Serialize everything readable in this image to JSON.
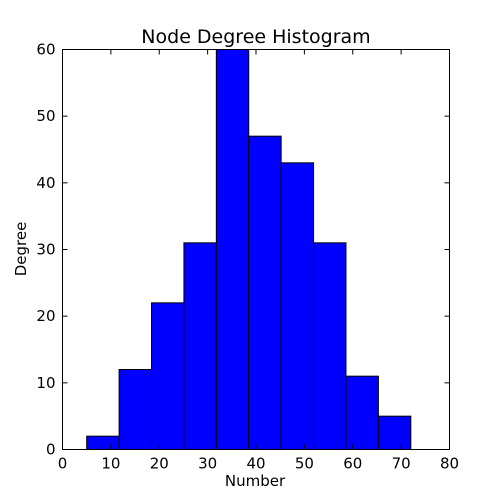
{
  "chart_data": {
    "type": "bar",
    "title": "Node Degree Histogram",
    "xlabel": "Number",
    "ylabel": "Degree",
    "xlim": [
      0,
      80
    ],
    "ylim": [
      0,
      60
    ],
    "xticks": [
      0,
      10,
      20,
      30,
      40,
      50,
      60,
      70,
      80
    ],
    "yticks": [
      0,
      10,
      20,
      30,
      40,
      50,
      60
    ],
    "bin_edges": [
      5.0,
      11.7,
      18.4,
      25.1,
      31.8,
      38.5,
      45.2,
      51.9,
      58.6,
      65.3,
      72.0
    ],
    "values": [
      2,
      12,
      22,
      31,
      60,
      47,
      43,
      31,
      11,
      5
    ],
    "bar_color": "#0000ff",
    "grid": false,
    "legend": "none"
  }
}
